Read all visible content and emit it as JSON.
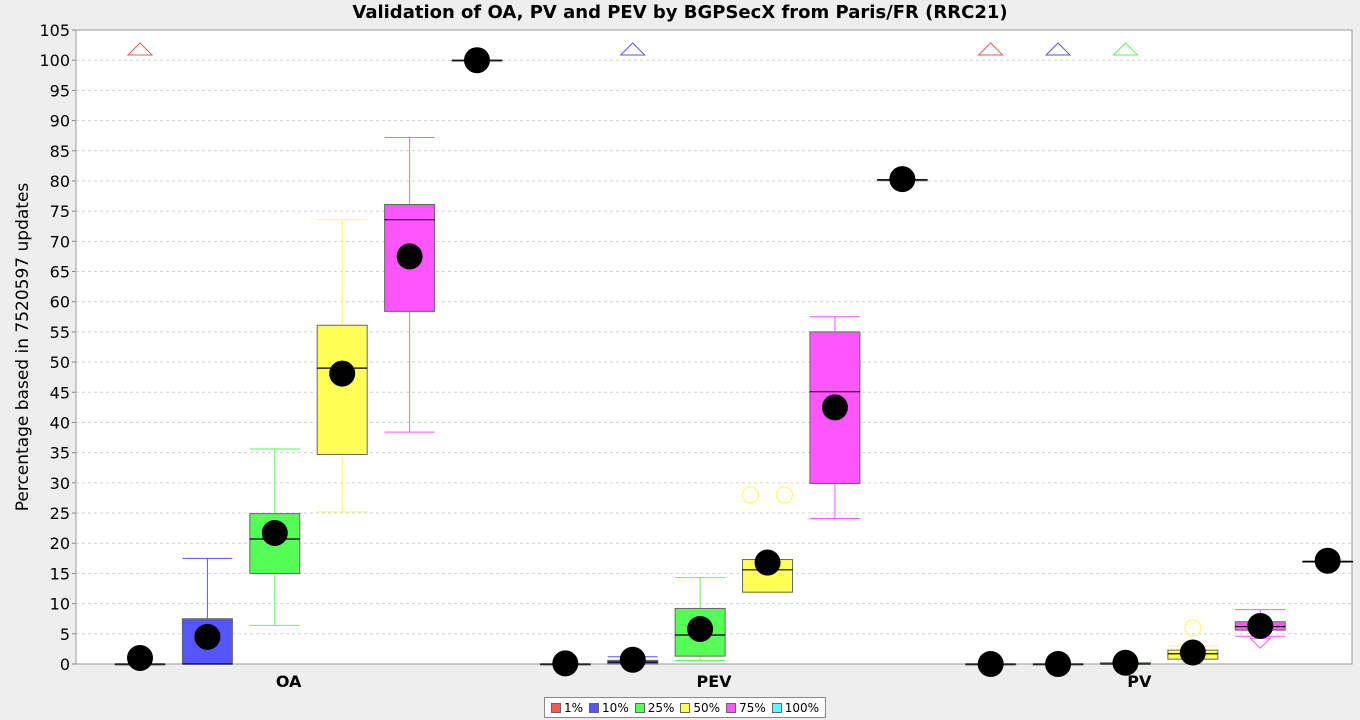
{
  "chart_data": {
    "type": "box",
    "title": "Validation of OA, PV and PEV by BGPSecX from Paris/FR (RRC21)",
    "ylabel": "Percentage based in 7520597 updates",
    "xlabel": "",
    "ylim": [
      0,
      105
    ],
    "yticks": [
      "0",
      "5",
      "10",
      "15",
      "20",
      "25",
      "30",
      "35",
      "40",
      "45",
      "50",
      "55",
      "60",
      "65",
      "70",
      "75",
      "80",
      "85",
      "90",
      "95",
      "100",
      "105"
    ],
    "grid": true,
    "legend_position": "bottom-center",
    "categories": [
      "OA",
      "PEV",
      "PV"
    ],
    "series": [
      {
        "name": "1%",
        "color": "#ff5555"
      },
      {
        "name": "10%",
        "color": "#5555ff"
      },
      {
        "name": "25%",
        "color": "#55ff55"
      },
      {
        "name": "50%",
        "color": "#ffff55"
      },
      {
        "name": "75%",
        "color": "#ff55ff"
      },
      {
        "name": "100%",
        "color": "#55ffff"
      }
    ],
    "boxes": [
      {
        "category": "OA",
        "series": "1%",
        "min": 0,
        "q1": 0,
        "median": 0,
        "q3": 0,
        "max": 0,
        "mean": 1.0,
        "outliers": [],
        "far_out_high": true
      },
      {
        "category": "OA",
        "series": "10%",
        "min": 0,
        "q1": 0,
        "median": 0,
        "q3": 7.5,
        "max": 17.5,
        "mean": 4.5,
        "outliers": [],
        "far_out_high": false
      },
      {
        "category": "OA",
        "series": "25%",
        "min": 6.4,
        "q1": 15.0,
        "median": 20.7,
        "q3": 24.9,
        "max": 35.6,
        "mean": 21.7,
        "outliers": [],
        "far_out_high": false
      },
      {
        "category": "OA",
        "series": "50%",
        "min": 25.2,
        "q1": 34.7,
        "median": 49.0,
        "q3": 56.1,
        "max": 73.6,
        "mean": 48.1,
        "outliers": [],
        "far_out_high": false
      },
      {
        "category": "OA",
        "series": "75%",
        "min": 38.4,
        "q1": 58.4,
        "median": 73.6,
        "q3": 76.1,
        "max": 87.2,
        "mean": 67.5,
        "outliers": [],
        "far_out_high": false
      },
      {
        "category": "OA",
        "series": "100%",
        "min": 100,
        "q1": 100,
        "median": 100,
        "q3": 100,
        "max": 100,
        "mean": 100,
        "outliers": [],
        "far_out_high": false
      },
      {
        "category": "PEV",
        "series": "1%",
        "min": 0,
        "q1": 0,
        "median": 0,
        "q3": 0,
        "max": 0,
        "mean": 0.1,
        "outliers": [],
        "far_out_high": false
      },
      {
        "category": "PEV",
        "series": "10%",
        "min": 0,
        "q1": 0,
        "median": 0.3,
        "q3": 0.6,
        "max": 1.2,
        "mean": 0.7,
        "outliers": [],
        "far_out_high": true
      },
      {
        "category": "PEV",
        "series": "25%",
        "min": 0.6,
        "q1": 1.3,
        "median": 4.8,
        "q3": 9.2,
        "max": 14.3,
        "mean": 5.8,
        "outliers": [],
        "far_out_high": false
      },
      {
        "category": "PEV",
        "series": "50%",
        "min": 11.8,
        "q1": 11.9,
        "median": 15.6,
        "q3": 17.3,
        "max": 17.3,
        "mean": 16.8,
        "outliers": [
          28.0,
          28.0
        ],
        "far_out_high": false
      },
      {
        "category": "PEV",
        "series": "75%",
        "min": 24.1,
        "q1": 29.9,
        "median": 45.1,
        "q3": 55.0,
        "max": 57.5,
        "mean": 42.5,
        "outliers": [],
        "far_out_high": false
      },
      {
        "category": "PEV",
        "series": "100%",
        "min": 80.2,
        "q1": 80.2,
        "median": 80.2,
        "q3": 80.2,
        "max": 80.2,
        "mean": 80.3,
        "outliers": [],
        "far_out_high": false
      },
      {
        "category": "PV",
        "series": "1%",
        "min": 0,
        "q1": 0,
        "median": 0,
        "q3": 0,
        "max": 0,
        "mean": 0,
        "outliers": [],
        "far_out_high": true
      },
      {
        "category": "PV",
        "series": "10%",
        "min": 0,
        "q1": 0,
        "median": 0,
        "q3": 0,
        "max": 0,
        "mean": 0,
        "outliers": [],
        "far_out_high": true
      },
      {
        "category": "PV",
        "series": "25%",
        "min": 0,
        "q1": 0,
        "median": 0,
        "q3": 0.2,
        "max": 0.2,
        "mean": 0.2,
        "outliers": [],
        "far_out_high": true
      },
      {
        "category": "PV",
        "series": "50%",
        "min": 0.8,
        "q1": 0.8,
        "median": 1.7,
        "q3": 2.3,
        "max": 3.0,
        "mean": 1.9,
        "outliers": [
          6.0
        ],
        "far_out_high": false
      },
      {
        "category": "PV",
        "series": "75%",
        "min": 4.6,
        "q1": 5.6,
        "median": 6.2,
        "q3": 7.0,
        "max": 9.0,
        "mean": 6.3,
        "outliers": [],
        "far_out_high": false,
        "far_out_low": true
      },
      {
        "category": "PV",
        "series": "100%",
        "min": 17.0,
        "q1": 17.0,
        "median": 17.0,
        "q3": 17.0,
        "max": 17.0,
        "mean": 17.1,
        "outliers": [],
        "far_out_high": false
      }
    ]
  }
}
